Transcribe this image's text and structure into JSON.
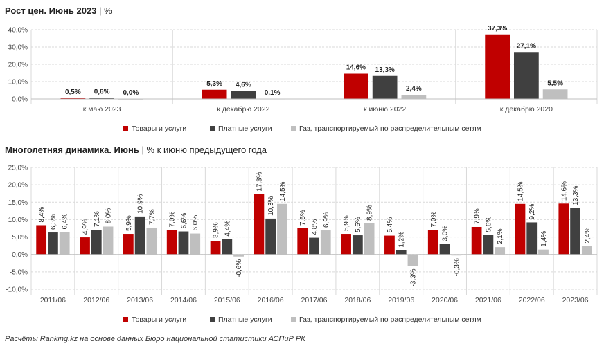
{
  "charts": {
    "top": {
      "title_bold": "Рост цен. Июнь 2023",
      "title_sep": "|",
      "title_unit": "%"
    },
    "bottom": {
      "title_bold": "Многолетняя динамика. Июнь",
      "title_sep": "|",
      "title_unit": "% к июню предыдущего года"
    }
  },
  "footer": "Расчёты Ranking.kz на основе данных Бюро национальной статистики АСПиР РК",
  "colors": {
    "goods": "#c00000",
    "paid": "#404040",
    "gas": "#bfbfbf"
  },
  "chart_data": [
    {
      "type": "bar",
      "title": "Рост цен. Июнь 2023 | %",
      "categories": [
        "к маю 2023",
        "к декабрю 2022",
        "к июню 2022",
        "к декабрю 2020"
      ],
      "series": [
        {
          "name": "Товары и услуги",
          "values": [
            0.5,
            5.3,
            14.6,
            37.3
          ],
          "labels": [
            "0,5%",
            "5,3%",
            "14,6%",
            "37,3%"
          ]
        },
        {
          "name": "Платные услуги",
          "values": [
            0.6,
            4.6,
            13.3,
            27.1
          ],
          "labels": [
            "0,6%",
            "4,6%",
            "13,3%",
            "27,1%"
          ]
        },
        {
          "name": "Газ, транспортируемый по распределительным сетям",
          "values": [
            0.0,
            0.1,
            2.4,
            5.5
          ],
          "labels": [
            "0,0%",
            "0,1%",
            "2,4%",
            "5,5%"
          ]
        }
      ],
      "ylim": [
        0,
        40
      ],
      "yticks": [
        "0,0%",
        "10,0%",
        "20,0%",
        "30,0%",
        "40,0%"
      ],
      "grid": true,
      "legend": "bottom"
    },
    {
      "type": "bar",
      "title": "Многолетняя динамика. Июнь | % к июню предыдущего года",
      "categories": [
        "2011/06",
        "2012/06",
        "2013/06",
        "2014/06",
        "2015/06",
        "2016/06",
        "2017/06",
        "2018/06",
        "2019/06",
        "2020/06",
        "2021/06",
        "2022/06",
        "2023/06"
      ],
      "series": [
        {
          "name": "Товары и услуги",
          "values": [
            8.4,
            4.9,
            5.9,
            7.0,
            3.9,
            17.3,
            7.5,
            5.9,
            5.4,
            7.0,
            7.9,
            14.5,
            14.6
          ],
          "labels": [
            "8,4%",
            "4,9%",
            "5,9%",
            "7,0%",
            "3,9%",
            "17,3%",
            "7,5%",
            "5,9%",
            "5,4%",
            "7,0%",
            "7,9%",
            "14,5%",
            "14,6%"
          ]
        },
        {
          "name": "Платные услуги",
          "values": [
            6.3,
            7.1,
            10.9,
            6.6,
            4.4,
            10.3,
            4.8,
            5.5,
            1.2,
            3.0,
            5.6,
            9.2,
            13.3
          ],
          "labels": [
            "6,3%",
            "7,1%",
            "10,9%",
            "6,6%",
            "4,4%",
            "10,3%",
            "4,8%",
            "5,5%",
            "1,2%",
            "3,0%",
            "5,6%",
            "9,2%",
            "13,3%"
          ]
        },
        {
          "name": "Газ, транспортируемый по распределительным сетям",
          "values": [
            6.4,
            8.0,
            7.7,
            6.0,
            -0.6,
            14.5,
            6.9,
            8.9,
            -3.3,
            -0.3,
            2.1,
            1.4,
            2.4
          ],
          "labels": [
            "6,4%",
            "8,0%",
            "7,7%",
            "6,0%",
            "-0,6%",
            "14,5%",
            "6,9%",
            "8,9%",
            "-3,3%",
            "-0,3%",
            "2,1%",
            "1,4%",
            "2,4%"
          ]
        }
      ],
      "ylim": [
        -10,
        25
      ],
      "yticks": [
        "-10,0%",
        "-5,0%",
        "0,0%",
        "5,0%",
        "10,0%",
        "15,0%",
        "20,0%",
        "25,0%"
      ],
      "grid": true,
      "legend": "bottom"
    }
  ]
}
